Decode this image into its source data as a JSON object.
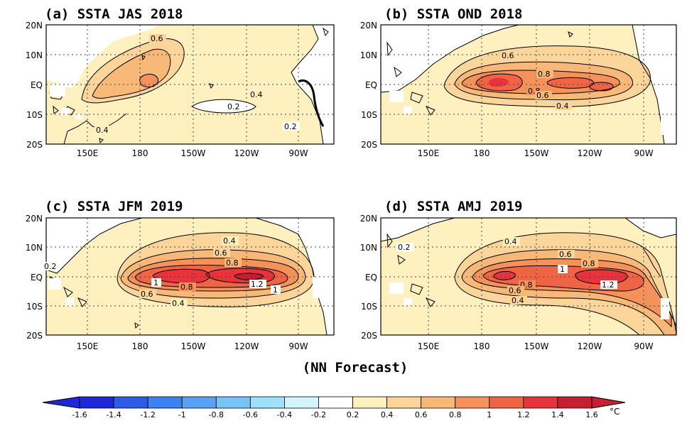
{
  "chart_data": {
    "type": "heatmap",
    "panels": [
      {
        "title": "(a) SSTA  JAS 2018",
        "xticks": [
          "150E",
          "180",
          "150W",
          "120W",
          "90W"
        ],
        "yticks": [
          "20N",
          "10N",
          "EQ",
          "10S",
          "20S"
        ],
        "contour_labels": [
          "0.6",
          "0.4",
          "0.2",
          "0.2",
          "0.4"
        ],
        "max_anomaly": 0.8
      },
      {
        "title": "(b) SSTA  OND 2018",
        "xticks": [
          "150E",
          "180",
          "150W",
          "120W",
          "90W"
        ],
        "yticks": [
          "20N",
          "10N",
          "EQ",
          "10S",
          "20S"
        ],
        "contour_labels": [
          "0.6",
          "0.8",
          "0.8",
          "0.6",
          "0.4"
        ],
        "max_anomaly": 1.2
      },
      {
        "title": "(c) SSTA  JFM 2019",
        "xticks": [
          "150E",
          "180",
          "150W",
          "120W",
          "90W"
        ],
        "yticks": [
          "20N",
          "10N",
          "EQ",
          "10S",
          "20S"
        ],
        "contour_labels": [
          "0.4",
          "0.6",
          "0.8",
          "1",
          "0.8",
          "1.2",
          "1",
          "0.6",
          "0.4",
          "0.2"
        ],
        "max_anomaly": 1.4
      },
      {
        "title": "(d) SSTA  AMJ 2019",
        "xticks": [
          "150E",
          "180",
          "150W",
          "120W",
          "90W"
        ],
        "yticks": [
          "20N",
          "10N",
          "EQ",
          "10S",
          "20S"
        ],
        "contour_labels": [
          "0.4",
          "0.6",
          "0.8",
          "1",
          "0.8",
          "0.6",
          "0.4",
          "1.2",
          "0.2"
        ],
        "max_anomaly": 1.4
      }
    ],
    "footer": "(NN Forecast)",
    "colorbar": {
      "ticks": [
        "-1.6",
        "-1.4",
        "-1.2",
        "-1",
        "-0.8",
        "-0.6",
        "-0.4",
        "-0.2",
        "0.2",
        "0.4",
        "0.6",
        "0.8",
        "1",
        "1.2",
        "1.4",
        "1.6"
      ],
      "unit": "°C",
      "colors": [
        "#1e28d8",
        "#2d5ae6",
        "#3c82f0",
        "#5aa0f5",
        "#78c3f8",
        "#a0e1fa",
        "#d2f5fc",
        "#ffffff",
        "#fff0c0",
        "#fcd59a",
        "#f8b878",
        "#f5915a",
        "#f06446",
        "#e8323c",
        "#c81e32"
      ]
    }
  }
}
